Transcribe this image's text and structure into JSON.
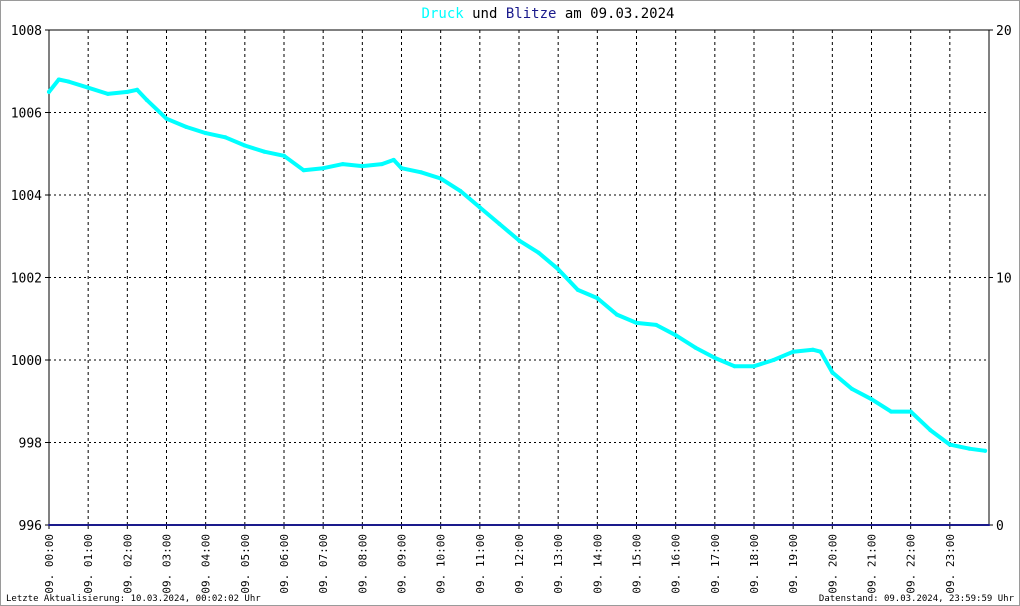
{
  "title": {
    "part1": "Druck",
    "part2": " und ",
    "part3": "Blitze",
    "part4": " am 09.03.2024"
  },
  "colors": {
    "pressure": "#00ffff",
    "lightning": "#1a1a8c",
    "title_text": "#000000",
    "frame": "#9a9a9a"
  },
  "footer": {
    "left": "Letzte Aktualisierung: 10.03.2024, 00:02:02 Uhr",
    "right": "Datenstand: 09.03.2024, 23:59:59 Uhr"
  },
  "chart_data": {
    "type": "line",
    "x_tick_labels": [
      "09. 00:00",
      "09. 01:00",
      "09. 02:00",
      "09. 03:00",
      "09. 04:00",
      "09. 05:00",
      "09. 06:00",
      "09. 07:00",
      "09. 08:00",
      "09. 09:00",
      "09. 10:00",
      "09. 11:00",
      "09. 12:00",
      "09. 13:00",
      "09. 14:00",
      "09. 15:00",
      "09. 16:00",
      "09. 17:00",
      "09. 18:00",
      "09. 19:00",
      "09. 20:00",
      "09. 21:00",
      "09. 22:00",
      "09. 23:00"
    ],
    "y_left": {
      "ylim": [
        996,
        1008
      ],
      "ticks": [
        "1008",
        "1006",
        "1004",
        "1002",
        "1000",
        "998",
        "996"
      ]
    },
    "y_right": {
      "ylim": [
        0,
        20
      ],
      "ticks": [
        "20",
        "10",
        "0"
      ]
    },
    "grid": true,
    "series": [
      {
        "name": "Druck",
        "axis": "left",
        "x_hours": [
          0,
          0.25,
          0.5,
          1,
          1.5,
          2,
          2.25,
          2.5,
          3,
          3.5,
          4,
          4.5,
          5,
          5.5,
          6,
          6.5,
          7,
          7.5,
          8,
          8.5,
          8.8,
          9,
          9.5,
          10,
          10.5,
          11,
          11.5,
          12,
          12.5,
          13,
          13.5,
          14,
          14.5,
          15,
          15.5,
          16,
          16.5,
          17,
          17.5,
          18,
          18.5,
          19,
          19.5,
          19.7,
          20,
          20.5,
          21,
          21.5,
          22,
          22.5,
          23,
          23.5,
          23.9
        ],
        "values": [
          1006.5,
          1006.8,
          1006.75,
          1006.6,
          1006.45,
          1006.5,
          1006.55,
          1006.3,
          1005.85,
          1005.65,
          1005.5,
          1005.4,
          1005.2,
          1005.05,
          1004.95,
          1004.6,
          1004.65,
          1004.75,
          1004.7,
          1004.75,
          1004.85,
          1004.65,
          1004.55,
          1004.4,
          1004.1,
          1003.7,
          1003.3,
          1002.9,
          1002.6,
          1002.2,
          1001.7,
          1001.5,
          1001.1,
          1000.9,
          1000.85,
          1000.6,
          1000.3,
          1000.05,
          999.85,
          999.85,
          1000.0,
          1000.2,
          1000.25,
          1000.2,
          999.7,
          999.3,
          999.05,
          998.75,
          998.75,
          998.3,
          997.95,
          997.85,
          997.8
        ]
      },
      {
        "name": "Blitze",
        "axis": "right",
        "x_hours": [
          0,
          24
        ],
        "values": [
          0,
          0
        ]
      }
    ]
  }
}
